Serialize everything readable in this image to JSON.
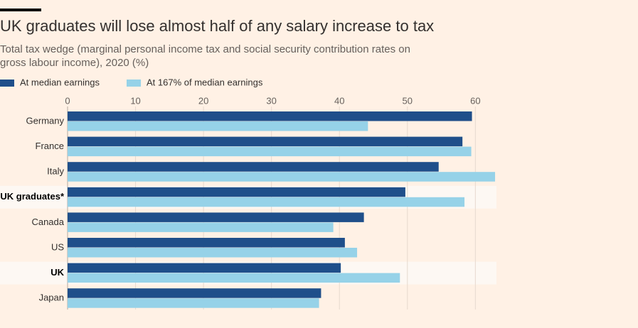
{
  "chart_data": {
    "type": "hbar",
    "title": "UK graduates will lose almost half of any salary increase to tax",
    "subtitle": [
      "Total tax wedge (marginal personal income tax and social security contribution rates on",
      "gross labour income), 2020 (%)"
    ],
    "categories": [
      "Germany",
      "France",
      "Italy",
      "UK graduates*",
      "Canada",
      "US",
      "UK",
      "Japan"
    ],
    "highlighted": [
      false,
      false,
      false,
      true,
      false,
      false,
      true,
      false
    ],
    "series": [
      {
        "name": "At median earnings",
        "color": "#1f4f8a",
        "values": [
          59.5,
          58.1,
          54.6,
          49.7,
          43.6,
          40.8,
          40.2,
          37.3
        ]
      },
      {
        "name": "At 167% of median earnings",
        "color": "#96d2e8",
        "values": [
          44.2,
          59.4,
          62.9,
          58.4,
          39.1,
          42.6,
          48.9,
          37.0
        ]
      }
    ],
    "xlim": [
      0,
      63
    ],
    "xticks": [
      0,
      10,
      20,
      30,
      40,
      50,
      60
    ],
    "grid": true
  }
}
